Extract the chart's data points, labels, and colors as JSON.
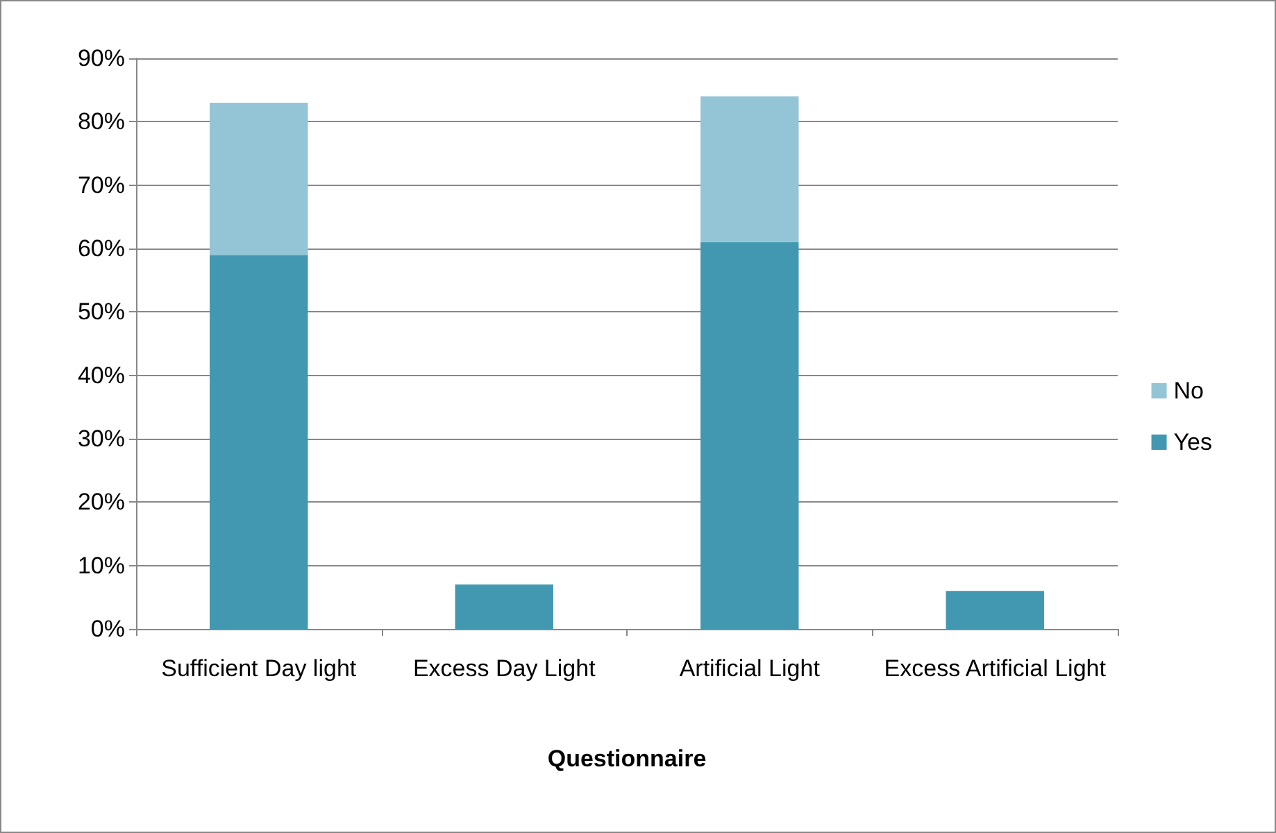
{
  "chart_data": {
    "type": "bar",
    "xlabel": "Questionnaire",
    "categories": [
      "Sufficient Day light",
      "Excess Day Light",
      "Artificial Light",
      "Excess Artificial Light"
    ],
    "series": [
      {
        "name": "Yes",
        "color": "#4198b0",
        "values": [
          59,
          7,
          61,
          6
        ]
      },
      {
        "name": "No",
        "color": "#93c5d6",
        "values": [
          24,
          null,
          23,
          null
        ]
      }
    ],
    "stacked": true,
    "ylim": [
      0,
      90
    ],
    "yticks": [
      {
        "value": 0,
        "label": "0%"
      },
      {
        "value": 10,
        "label": "10%"
      },
      {
        "value": 20,
        "label": "20%"
      },
      {
        "value": 30,
        "label": "30%"
      },
      {
        "value": 40,
        "label": "40%"
      },
      {
        "value": 50,
        "label": "50%"
      },
      {
        "value": 60,
        "label": "60%"
      },
      {
        "value": 70,
        "label": "70%"
      },
      {
        "value": 80,
        "label": "80%"
      },
      {
        "value": 90,
        "label": "90%"
      }
    ],
    "grid": "y",
    "legend": "right"
  }
}
